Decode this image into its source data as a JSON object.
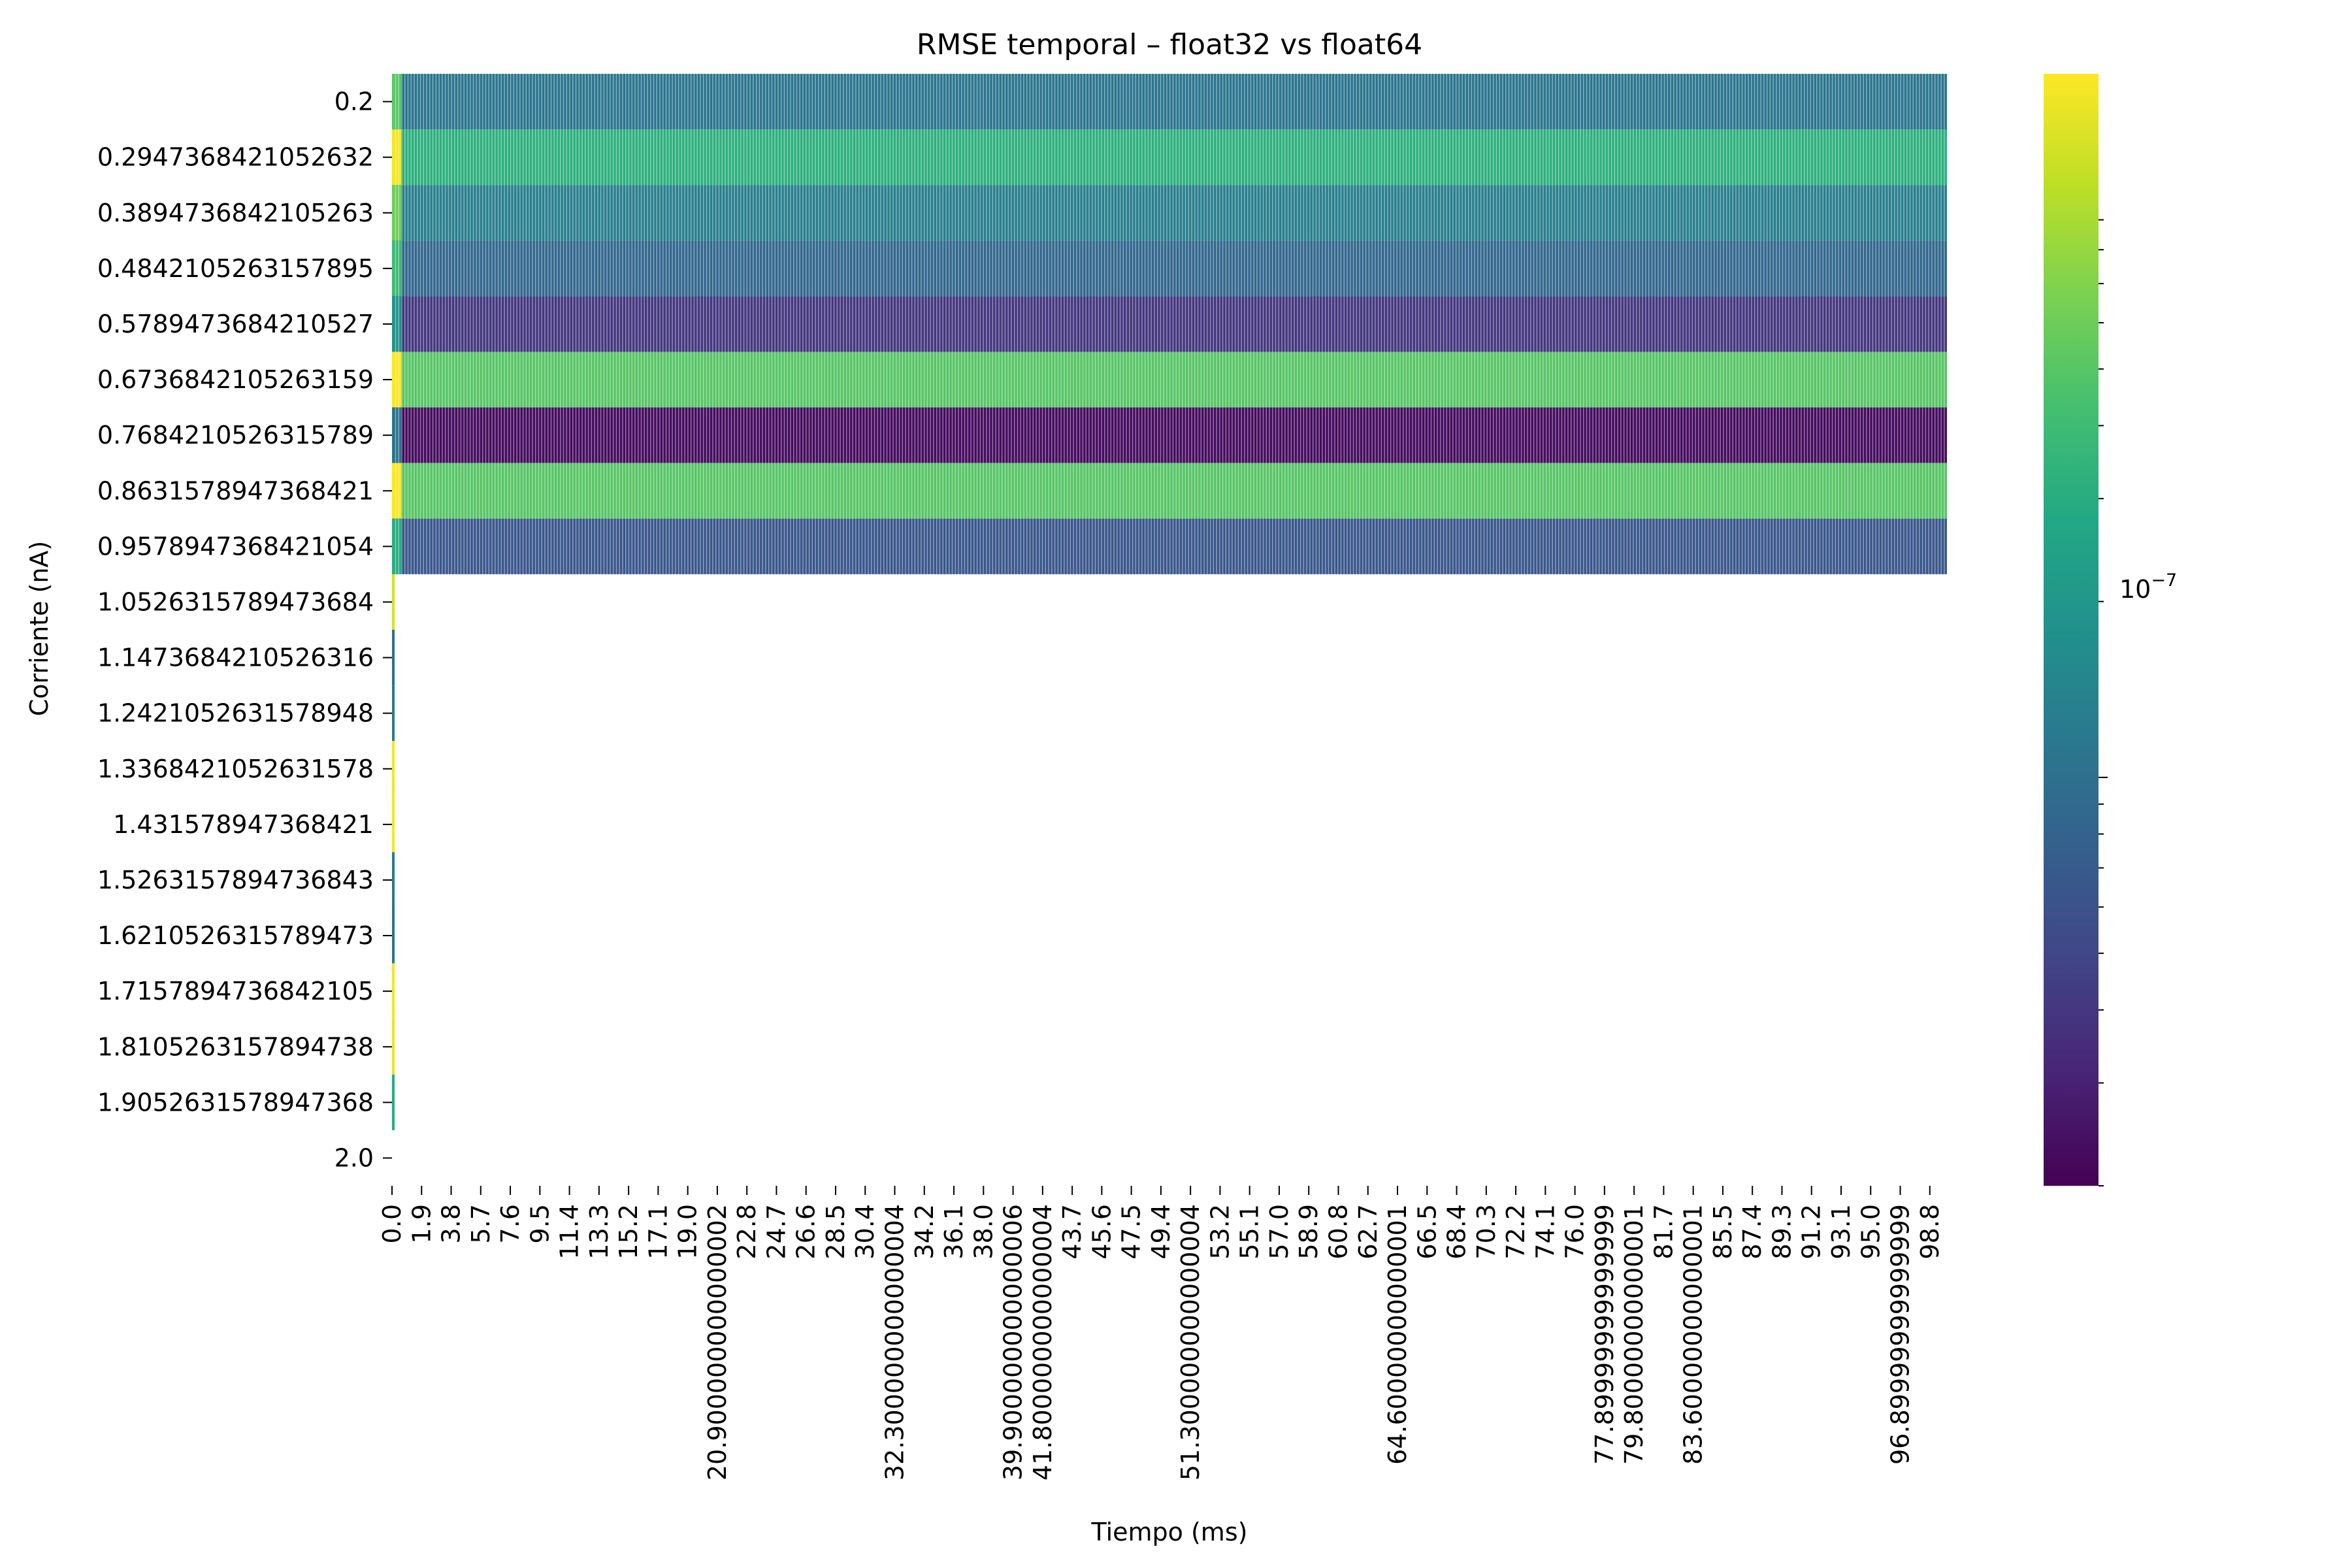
{
  "chart_data": {
    "type": "heatmap",
    "title": "RMSE temporal – float32 vs float64",
    "xlabel": "Tiempo (ms)",
    "ylabel": "Corriente (nA)",
    "colormap": "viridis",
    "colorscale": "log",
    "colorbar": {
      "major_tick_label": "10",
      "major_tick_exponent": "−7",
      "major_tick_value": 1e-07,
      "range": [
        2e-08,
        1.6e-06
      ]
    },
    "y_categories": [
      "0.2",
      "0.2947368421052632",
      "0.3894736842105263",
      "0.4842105263157895",
      "0.5789473684210527",
      "0.6736842105263159",
      "0.7684210526315789",
      "0.8631578947368421",
      "0.9578947368421054",
      "1.0526315789473684",
      "1.1473684210526316",
      "1.2421052631578948",
      "1.3368421052631578",
      "1.431578947368421",
      "1.5263157894736843",
      "1.6210526315789473",
      "1.7157894736842105",
      "1.8105263157894738",
      "1.9052631578947368",
      "2.0"
    ],
    "x_tick_labels": [
      "0.0",
      "1.9",
      "3.8",
      "5.7",
      "7.6",
      "9.5",
      "11.4",
      "13.3",
      "15.2",
      "17.1",
      "19.0",
      "20.900000000000002",
      "22.8",
      "24.7",
      "26.6",
      "28.5",
      "30.4",
      "32.300000000000004",
      "34.2",
      "36.1",
      "38.0",
      "39.900000000000006",
      "41.800000000000004",
      "43.7",
      "45.6",
      "47.5",
      "49.4",
      "51.300000000000004",
      "53.2",
      "55.1",
      "57.0",
      "58.9",
      "60.8",
      "62.7",
      "64.60000000000001",
      "66.5",
      "68.4",
      "70.3",
      "72.2",
      "74.1",
      "76.0",
      "77.89999999999999",
      "79.80000000000001",
      "81.7",
      "83.60000000000001",
      "85.5",
      "87.4",
      "89.3",
      "91.2",
      "93.1",
      "95.0",
      "96.89999999999999",
      "98.8"
    ],
    "x_range": [
      0.0,
      99.9
    ],
    "row_typical_rmse": [
      1.1e-07,
      3.2e-07,
      1.3e-07,
      8.5e-08,
      4e-08,
      5e-07,
      2.3e-08,
      5e-07,
      6.5e-08,
      1.2e-06,
      1e-07,
      1.2e-07,
      1.5e-06,
      1.5e-06,
      1.2e-07,
      1.1e-07,
      1.5e-06,
      1.4e-06,
      3e-07,
      null
    ],
    "rows_with_full_series": 9,
    "note_rows_after_first_nine_have_data_only_at_t0": true
  }
}
